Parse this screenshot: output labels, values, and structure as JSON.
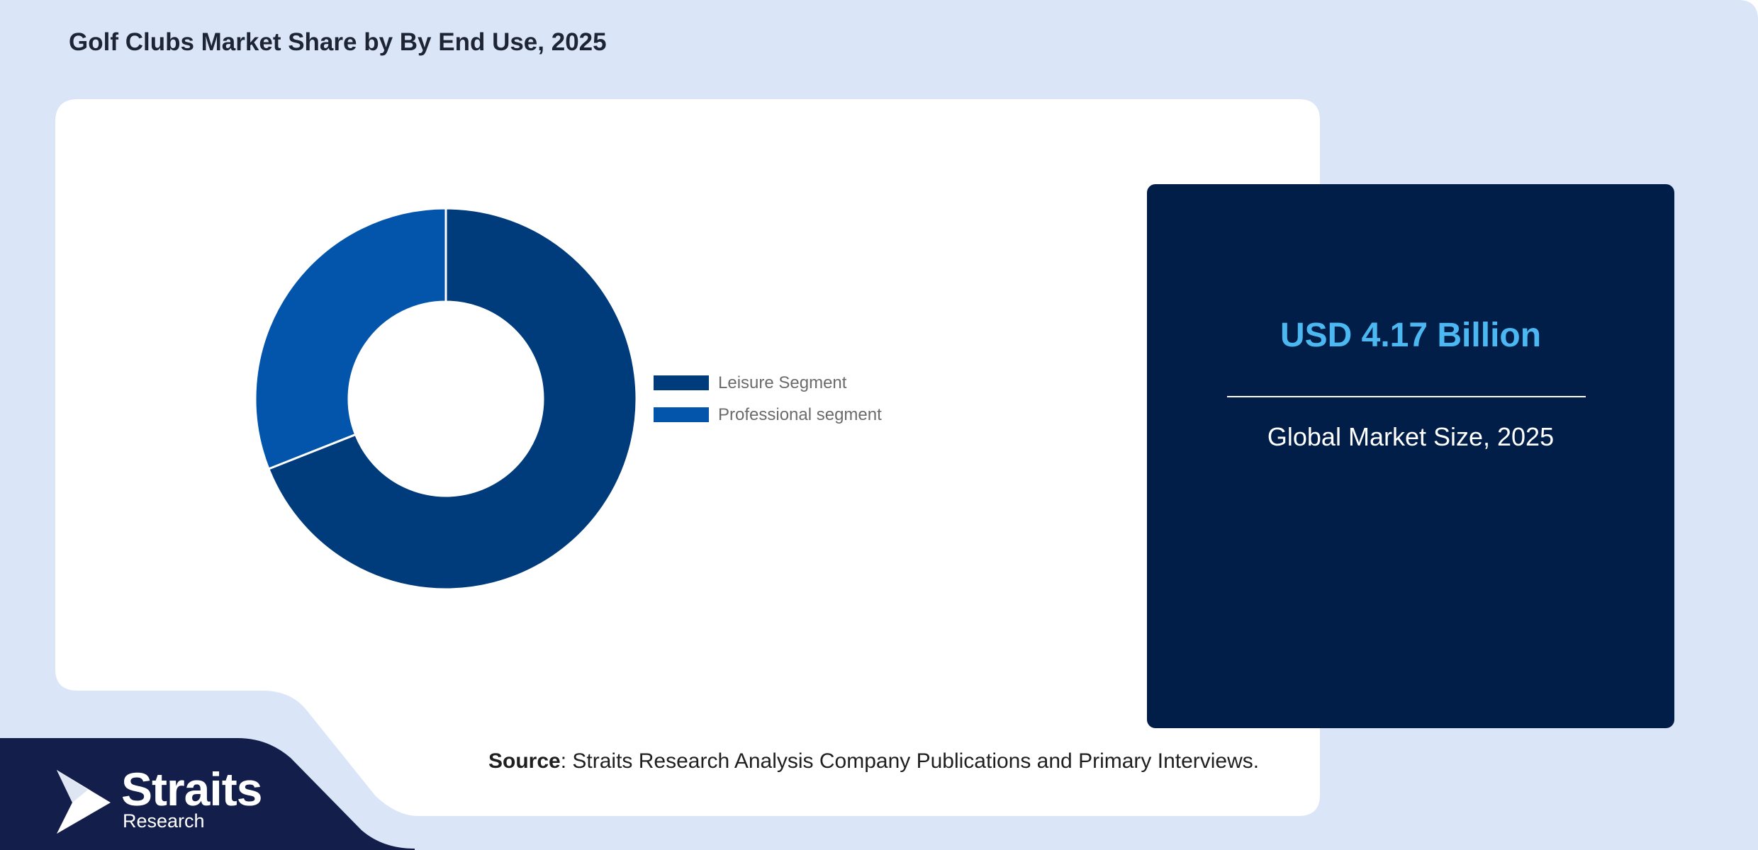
{
  "page": {
    "title": "Golf Clubs Market Share by By End Use, 2025"
  },
  "chart_data": {
    "type": "pie",
    "title": "Golf Clubs Market Share by By End Use, 2025",
    "donut": true,
    "categories": [
      "Leisure Segment",
      "Professional segment"
    ],
    "values": [
      69,
      31
    ],
    "colors": [
      "#003b7c",
      "#0255aa"
    ],
    "legend_position": "right"
  },
  "kpi": {
    "value": "USD 4.17 Billion",
    "label": "Global Market Size, 2025"
  },
  "source": {
    "label": "Source",
    "text": ": Straits Research Analysis Company Publications and Primary Interviews."
  },
  "brand": {
    "name": "Straits",
    "sub": "Research"
  },
  "colors": {
    "page_background": "#dae6f8",
    "kpi_background": "#011e48",
    "kpi_value": "#4cb8f2",
    "footer_band": "#131f4a"
  }
}
